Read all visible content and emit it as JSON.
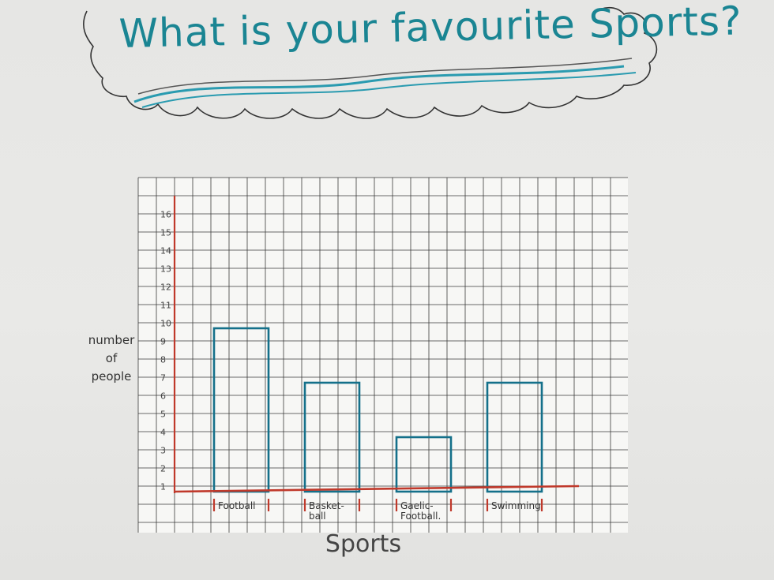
{
  "poster": {
    "title": "What is your favourite Sports?"
  },
  "colors": {
    "bar_outline": "#14708a",
    "axis": "#c0392b",
    "grid": "#3a3a3a",
    "title": "#1a8593"
  },
  "chart_data": {
    "type": "bar",
    "title": "What is your favourite Sports?",
    "xlabel": "Sports",
    "ylabel": "number of people",
    "categories": [
      "Football",
      "Basket-ball",
      "Gaelic-Football",
      "Swimming"
    ],
    "category_lines": [
      [
        "Football"
      ],
      [
        "Basket-",
        "ball"
      ],
      [
        "Gaelic-",
        "Football."
      ],
      [
        "Swimming"
      ]
    ],
    "values": [
      10,
      7,
      4,
      7
    ],
    "y_ticks": [
      1,
      2,
      3,
      4,
      5,
      6,
      7,
      8,
      9,
      10,
      11,
      12,
      13,
      14,
      15,
      16
    ],
    "ylim": [
      0,
      16
    ],
    "grid": true,
    "legend": "none"
  }
}
